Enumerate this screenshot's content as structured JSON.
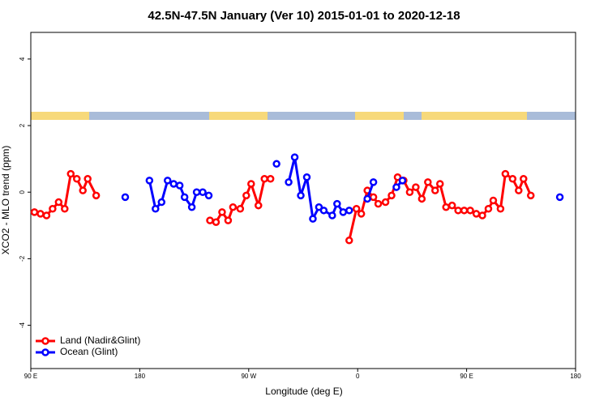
{
  "chart_data": {
    "type": "line",
    "title": "42.5N-47.5N January (Ver 10)   2015-01-01 to 2020-12-18",
    "x_label": "Longitude (deg E)",
    "y_label": "XCO2 - MLO trend (ppm)",
    "xlim": [
      90,
      540
    ],
    "xticks": [
      {
        "value": 90,
        "label": "90 E"
      },
      180,
      {
        "value": 270,
        "label": "90 W"
      },
      {
        "value": 360,
        "label": "0"
      },
      {
        "value": 450,
        "label": "90 E"
      },
      {
        "value": 540,
        "label": "180"
      }
    ],
    "ylim": [
      -5.3,
      4.8
    ],
    "yticks": [
      -4,
      -2,
      0,
      2,
      4
    ],
    "grid": false,
    "legend": "bottom-left",
    "series": [
      {
        "name": "Land (Nadir&Glint)",
        "color": "#ff0000",
        "x": [
          93,
          98,
          103,
          108,
          113,
          118,
          123,
          128,
          133,
          137,
          144,
          null,
          238,
          243,
          248,
          253,
          257,
          263,
          268,
          272,
          278,
          283,
          288,
          null,
          353,
          359,
          363,
          368,
          373,
          377,
          383,
          388,
          393,
          398,
          403,
          408,
          413,
          418,
          424,
          428,
          433,
          438,
          443,
          448,
          453,
          458,
          463,
          468,
          472,
          478,
          482,
          488,
          493,
          497,
          503
        ],
        "values": [
          -0.6,
          -0.65,
          -0.7,
          -0.5,
          -0.3,
          -0.5,
          0.55,
          0.4,
          0.05,
          0.4,
          -0.1,
          null,
          -0.85,
          -0.9,
          -0.6,
          -0.85,
          -0.45,
          -0.5,
          -0.1,
          0.25,
          -0.4,
          0.4,
          0.4,
          null,
          -1.45,
          -0.5,
          -0.65,
          0.05,
          -0.15,
          -0.35,
          -0.3,
          -0.1,
          0.45,
          0.35,
          0,
          0.15,
          -0.2,
          0.3,
          0.05,
          0.25,
          -0.45,
          -0.4,
          -0.55,
          -0.55,
          -0.55,
          -0.65,
          -0.7,
          -0.5,
          -0.25,
          -0.5,
          0.55,
          0.4,
          0.05,
          0.4,
          -0.1
        ]
      },
      {
        "name": "Ocean (Glint)",
        "color": "#0000ff",
        "x": [
          168,
          null,
          188,
          193,
          198,
          203,
          208,
          213,
          217,
          223,
          227,
          232,
          237,
          null,
          293,
          null,
          303,
          308,
          313,
          318,
          323,
          328,
          332,
          339,
          343,
          348,
          353,
          null,
          368,
          373,
          null,
          392,
          397,
          null,
          527
        ],
        "values": [
          -0.15,
          null,
          0.35,
          -0.5,
          -0.3,
          0.35,
          0.25,
          0.2,
          -0.15,
          -0.45,
          0,
          0,
          -0.1,
          null,
          0.85,
          null,
          0.3,
          1.05,
          -0.1,
          0.45,
          -0.8,
          -0.45,
          -0.55,
          -0.7,
          -0.35,
          -0.6,
          -0.55,
          null,
          -0.2,
          0.3,
          null,
          0.15,
          0.35,
          null,
          -0.15
        ]
      }
    ]
  }
}
